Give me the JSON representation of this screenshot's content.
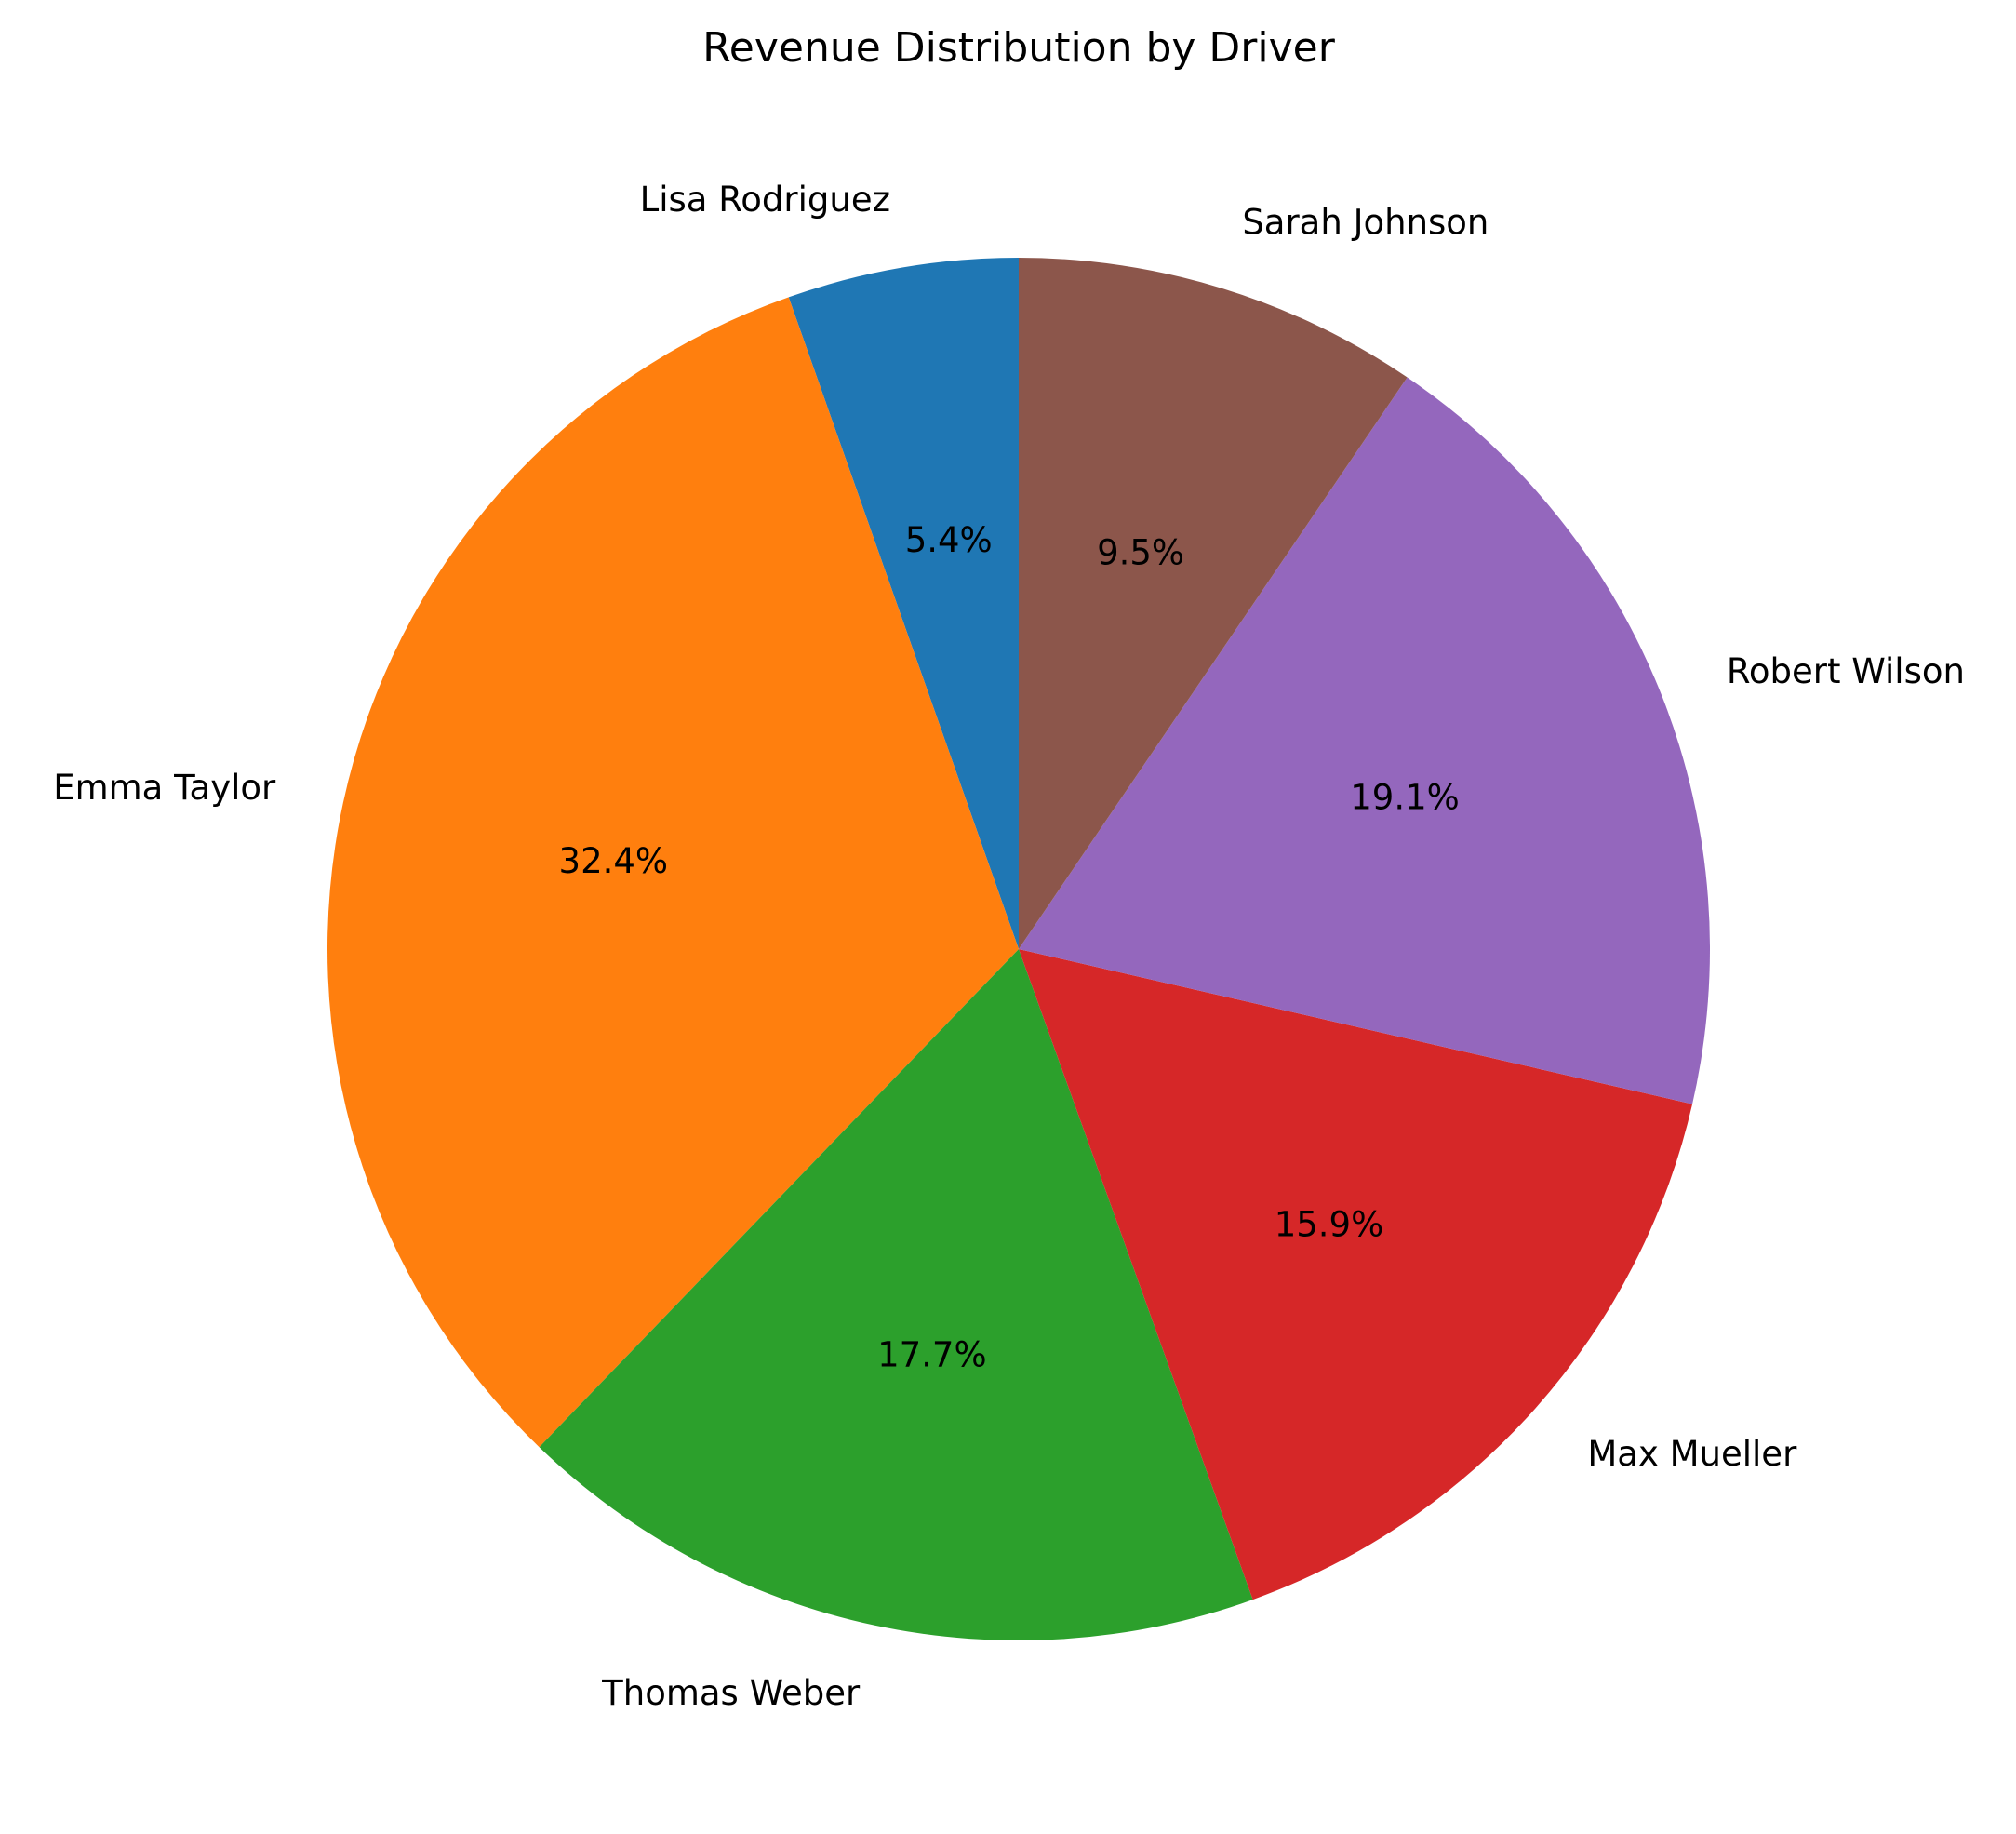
{
  "chart_data": {
    "type": "pie",
    "title": "Revenue Distribution by Driver",
    "start_angle_deg": 90,
    "direction": "counterclockwise",
    "slices": [
      {
        "label": "Lisa Rodriguez",
        "value": 5.4,
        "pct_text": "5.4%",
        "color": "#1f77b4"
      },
      {
        "label": "Emma Taylor",
        "value": 32.4,
        "pct_text": "32.4%",
        "color": "#ff7f0e"
      },
      {
        "label": "Thomas Weber",
        "value": 17.7,
        "pct_text": "17.7%",
        "color": "#2ca02c"
      },
      {
        "label": "Max Mueller",
        "value": 15.9,
        "pct_text": "15.9%",
        "color": "#d62728"
      },
      {
        "label": "Robert Wilson",
        "value": 19.1,
        "pct_text": "19.1%",
        "color": "#9467bd"
      },
      {
        "label": "Sarah Johnson",
        "value": 9.5,
        "pct_text": "9.5%",
        "color": "#8c564b"
      }
    ],
    "legend": "none"
  }
}
